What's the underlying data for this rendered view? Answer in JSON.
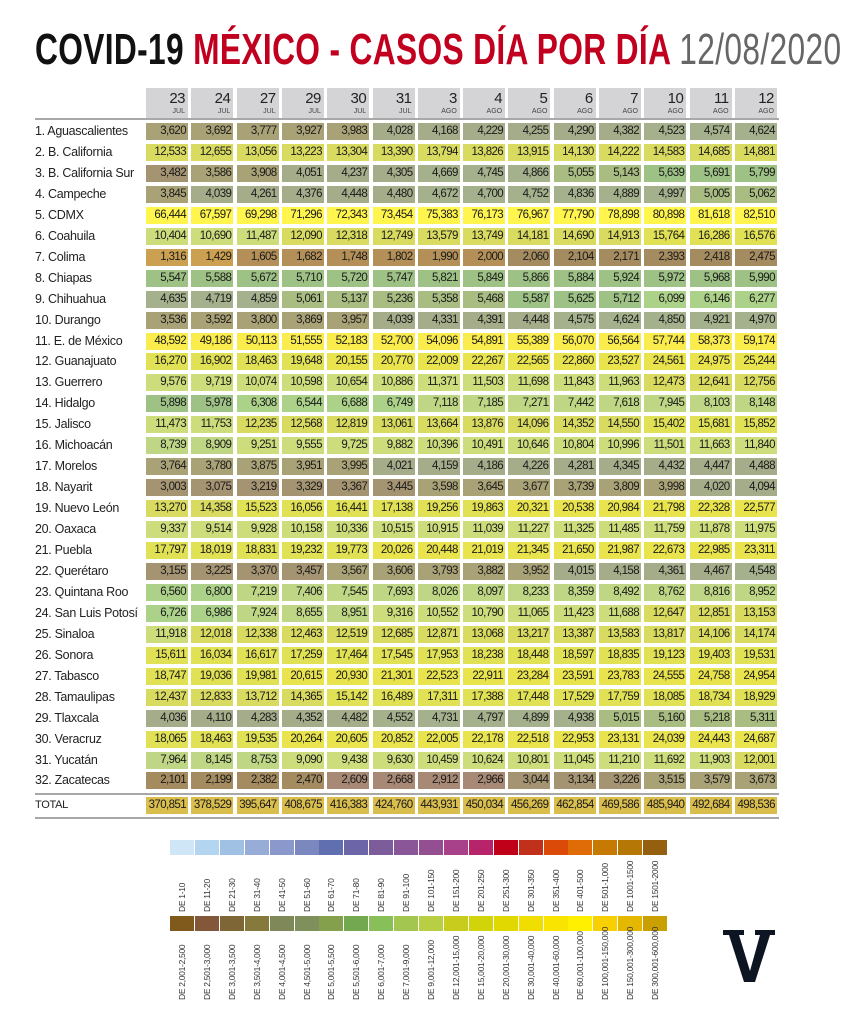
{
  "title": {
    "part1": "COVID-19",
    "part2": "MÉXICO - CASOS DÍA POR DÍA",
    "date": "12/08/2020"
  },
  "logo_text": "V",
  "columns": [
    {
      "day": "23",
      "month": "JUL"
    },
    {
      "day": "24",
      "month": "JUL"
    },
    {
      "day": "27",
      "month": "JUL"
    },
    {
      "day": "29",
      "month": "JUL"
    },
    {
      "day": "30",
      "month": "JUL"
    },
    {
      "day": "31",
      "month": "JUL"
    },
    {
      "day": "3",
      "month": "AGO"
    },
    {
      "day": "4",
      "month": "AGO"
    },
    {
      "day": "5",
      "month": "AGO"
    },
    {
      "day": "6",
      "month": "AGO"
    },
    {
      "day": "7",
      "month": "AGO"
    },
    {
      "day": "10",
      "month": "AGO"
    },
    {
      "day": "11",
      "month": "AGO"
    },
    {
      "day": "12",
      "month": "AGO"
    }
  ],
  "rows": [
    {
      "state": "1. Aguascalientes",
      "values": [
        "3,620",
        "3,692",
        "3,777",
        "3,927",
        "3,983",
        "4,028",
        "4,168",
        "4,229",
        "4,255",
        "4,290",
        "4,382",
        "4,523",
        "4,574",
        "4,624"
      ]
    },
    {
      "state": "2. B. California",
      "values": [
        "12,533",
        "12,655",
        "13,056",
        "13,223",
        "13,304",
        "13,390",
        "13,794",
        "13,826",
        "13,915",
        "14,130",
        "14,222",
        "14,583",
        "14,685",
        "14,881"
      ]
    },
    {
      "state": "3. B. California Sur",
      "values": [
        "3,482",
        "3,586",
        "3,908",
        "4,051",
        "4,237",
        "4,305",
        "4,669",
        "4,745",
        "4,866",
        "5,055",
        "5,143",
        "5,639",
        "5,691",
        "5,799"
      ]
    },
    {
      "state": "4. Campeche",
      "values": [
        "3,845",
        "4,039",
        "4,261",
        "4,376",
        "4,448",
        "4,480",
        "4,672",
        "4,700",
        "4,752",
        "4,836",
        "4,889",
        "4,997",
        "5,005",
        "5,062"
      ]
    },
    {
      "state": "5. CDMX",
      "values": [
        "66,444",
        "67,597",
        "69,298",
        "71,296",
        "72,343",
        "73,454",
        "75,383",
        "76,173",
        "76,967",
        "77,790",
        "78,898",
        "80,898",
        "81,618",
        "82,510"
      ]
    },
    {
      "state": "6. Coahuila",
      "values": [
        "10,404",
        "10,690",
        "11,487",
        "12,090",
        "12,318",
        "12,749",
        "13,579",
        "13,749",
        "14,181",
        "14,690",
        "14,913",
        "15,764",
        "16,286",
        "16,576"
      ]
    },
    {
      "state": "7. Colima",
      "values": [
        "1,316",
        "1,429",
        "1,605",
        "1,682",
        "1,748",
        "1,802",
        "1,990",
        "2,000",
        "2,060",
        "2,104",
        "2,171",
        "2,393",
        "2,418",
        "2,475"
      ]
    },
    {
      "state": "8. Chiapas",
      "values": [
        "5,547",
        "5,588",
        "5,672",
        "5,710",
        "5,720",
        "5,747",
        "5,821",
        "5,849",
        "5,866",
        "5,884",
        "5,924",
        "5,972",
        "5,968",
        "5,990"
      ]
    },
    {
      "state": "9. Chihuahua",
      "values": [
        "4,635",
        "4,719",
        "4,859",
        "5,061",
        "5,137",
        "5,236",
        "5,358",
        "5,468",
        "5,587",
        "5,625",
        "5,712",
        "6,099",
        "6,146",
        "6,277"
      ]
    },
    {
      "state": "10. Durango",
      "values": [
        "3,536",
        "3,592",
        "3,800",
        "3,869",
        "3,957",
        "4,039",
        "4,331",
        "4,391",
        "4,448",
        "4,575",
        "4,624",
        "4,850",
        "4,921",
        "4,970"
      ]
    },
    {
      "state": "11. E. de México",
      "values": [
        "48,592",
        "49,186",
        "50,113",
        "51,555",
        "52,183",
        "52,700",
        "54,096",
        "54,891",
        "55,389",
        "56,070",
        "56,564",
        "57,744",
        "58,373",
        "59,174"
      ]
    },
    {
      "state": "12. Guanajuato",
      "values": [
        "16,270",
        "16,902",
        "18,463",
        "19,648",
        "20,155",
        "20,770",
        "22,009",
        "22,267",
        "22,565",
        "22,860",
        "23,527",
        "24,561",
        "24,975",
        "25,244"
      ]
    },
    {
      "state": "13. Guerrero",
      "values": [
        "9,576",
        "9,719",
        "10,074",
        "10,598",
        "10,654",
        "10,886",
        "11,371",
        "11,503",
        "11,698",
        "11,843",
        "11,963",
        "12,473",
        "12,641",
        "12,756"
      ]
    },
    {
      "state": "14. Hidalgo",
      "values": [
        "5,898",
        "5,978",
        "6,308",
        "6,544",
        "6,688",
        "6,749",
        "7,118",
        "7,185",
        "7,271",
        "7,442",
        "7,618",
        "7,945",
        "8,103",
        "8,148"
      ]
    },
    {
      "state": "15. Jalisco",
      "values": [
        "11,473",
        "11,753",
        "12,235",
        "12,568",
        "12,819",
        "13,061",
        "13,664",
        "13,876",
        "14,096",
        "14,352",
        "14,550",
        "15,402",
        "15,681",
        "15,852"
      ]
    },
    {
      "state": "16. Michoacán",
      "values": [
        "8,739",
        "8,909",
        "9,251",
        "9,555",
        "9,725",
        "9,882",
        "10,396",
        "10,491",
        "10,646",
        "10,804",
        "10,996",
        "11,501",
        "11,663",
        "11,840"
      ]
    },
    {
      "state": "17. Morelos",
      "values": [
        "3,764",
        "3,780",
        "3,875",
        "3,951",
        "3,995",
        "4,021",
        "4,159",
        "4,186",
        "4,226",
        "4,281",
        "4,345",
        "4,432",
        "4,447",
        "4,488"
      ]
    },
    {
      "state": "18. Nayarit",
      "values": [
        "3,003",
        "3,075",
        "3,219",
        "3,329",
        "3,367",
        "3,445",
        "3,598",
        "3,645",
        "3,677",
        "3,739",
        "3,809",
        "3,998",
        "4,020",
        "4,094"
      ]
    },
    {
      "state": "19. Nuevo León",
      "values": [
        "13,270",
        "14,358",
        "15,523",
        "16,056",
        "16,441",
        "17,138",
        "19,256",
        "19,863",
        "20,321",
        "20,538",
        "20,984",
        "21,798",
        "22,328",
        "22,577"
      ]
    },
    {
      "state": "20. Oaxaca",
      "values": [
        "9,337",
        "9,514",
        "9,928",
        "10,158",
        "10,336",
        "10,515",
        "10,915",
        "11,039",
        "11,227",
        "11,325",
        "11,485",
        "11,759",
        "11,878",
        "11,975"
      ]
    },
    {
      "state": "21. Puebla",
      "values": [
        "17,797",
        "18,019",
        "18,831",
        "19,232",
        "19,773",
        "20,026",
        "20,448",
        "21,019",
        "21,345",
        "21,650",
        "21,987",
        "22,673",
        "22,985",
        "23,311"
      ]
    },
    {
      "state": "22. Querétaro",
      "values": [
        "3,155",
        "3,225",
        "3,370",
        "3,457",
        "3,567",
        "3,606",
        "3,793",
        "3,882",
        "3,952",
        "4,015",
        "4,158",
        "4,361",
        "4,467",
        "4,548"
      ]
    },
    {
      "state": "23. Quintana Roo",
      "values": [
        "6,560",
        "6,800",
        "7,219",
        "7,406",
        "7,545",
        "7,693",
        "8,026",
        "8,097",
        "8,233",
        "8,359",
        "8,492",
        "8,762",
        "8,816",
        "8,952"
      ]
    },
    {
      "state": "24. San Luis Potosí",
      "values": [
        "6,726",
        "6,986",
        "7,924",
        "8,655",
        "8,951",
        "9,316",
        "10,552",
        "10,790",
        "11,065",
        "11,423",
        "11,688",
        "12,647",
        "12,851",
        "13,153"
      ]
    },
    {
      "state": "25. Sinaloa",
      "values": [
        "11,918",
        "12,018",
        "12,338",
        "12,463",
        "12,519",
        "12,685",
        "12,871",
        "13,068",
        "13,217",
        "13,387",
        "13,583",
        "13,817",
        "14,106",
        "14,174"
      ]
    },
    {
      "state": "26. Sonora",
      "values": [
        "15,611",
        "16,034",
        "16,617",
        "17,259",
        "17,464",
        "17,545",
        "17,953",
        "18,238",
        "18,448",
        "18,597",
        "18,835",
        "19,123",
        "19,403",
        "19,531"
      ]
    },
    {
      "state": "27. Tabasco",
      "values": [
        "18,747",
        "19,036",
        "19,981",
        "20,615",
        "20,930",
        "21,301",
        "22,523",
        "22,911",
        "23,284",
        "23,591",
        "23,783",
        "24,555",
        "24,758",
        "24,954"
      ]
    },
    {
      "state": "28. Tamaulipas",
      "values": [
        "12,437",
        "12,833",
        "13,712",
        "14,365",
        "15,142",
        "16,489",
        "17,311",
        "17,388",
        "17,448",
        "17,529",
        "17,759",
        "18,085",
        "18,734",
        "18,929"
      ]
    },
    {
      "state": "29. Tlaxcala",
      "values": [
        "4,036",
        "4,110",
        "4,283",
        "4,352",
        "4,482",
        "4,552",
        "4,731",
        "4,797",
        "4,899",
        "4,938",
        "5,015",
        "5,160",
        "5,218",
        "5,311"
      ]
    },
    {
      "state": "30. Veracruz",
      "values": [
        "18,065",
        "18,463",
        "19,535",
        "20,264",
        "20,605",
        "20,852",
        "22,005",
        "22,178",
        "22,518",
        "22,953",
        "23,131",
        "24,039",
        "24,443",
        "24,687"
      ]
    },
    {
      "state": "31. Yucatán",
      "values": [
        "7,964",
        "8,145",
        "8,753",
        "9,090",
        "9,438",
        "9,630",
        "10,459",
        "10,624",
        "10,801",
        "11,045",
        "11,210",
        "11,692",
        "11,903",
        "12,001"
      ]
    },
    {
      "state": "32. Zacatecas",
      "values": [
        "2,101",
        "2,199",
        "2,382",
        "2,470",
        "2,609",
        "2,668",
        "2,912",
        "2,966",
        "3,044",
        "3,134",
        "3,226",
        "3,515",
        "3,579",
        "3,673"
      ]
    }
  ],
  "total": {
    "label": "TOTAL",
    "values": [
      "370,851",
      "378,529",
      "395,647",
      "408,675",
      "416,383",
      "424,760",
      "443,931",
      "450,034",
      "456,269",
      "462,854",
      "469,586",
      "485,940",
      "492,684",
      "498,536"
    ]
  },
  "legend": [
    [
      {
        "label": "DE 1-10",
        "min": 1,
        "color": "#cfe6f7"
      },
      {
        "label": "DE 11-20",
        "min": 11,
        "color": "#b3d5ef"
      },
      {
        "label": "DE 21-30",
        "min": 21,
        "color": "#a0c0e4"
      },
      {
        "label": "DE 31-40",
        "min": 31,
        "color": "#98acd8"
      },
      {
        "label": "DE 41-50",
        "min": 41,
        "color": "#8a98cc"
      },
      {
        "label": "DE 51-60",
        "min": 51,
        "color": "#7b88c0"
      },
      {
        "label": "DE 61-70",
        "min": 61,
        "color": "#5f6fb0"
      },
      {
        "label": "DE 71-80",
        "min": 71,
        "color": "#6c66a8"
      },
      {
        "label": "DE 81-90",
        "min": 81,
        "color": "#7d5c9c"
      },
      {
        "label": "DE 91-100",
        "min": 91,
        "color": "#8a5698"
      },
      {
        "label": "DE 101-150",
        "min": 101,
        "color": "#944f93"
      },
      {
        "label": "DE 151-200",
        "min": 151,
        "color": "#a9408a"
      },
      {
        "label": "DE 201-250",
        "min": 201,
        "color": "#b8246a"
      },
      {
        "label": "DE 251-300",
        "min": 251,
        "color": "#bf0018"
      },
      {
        "label": "DE 301-350",
        "min": 301,
        "color": "#c0301a"
      },
      {
        "label": "DE 351-400",
        "min": 351,
        "color": "#dc4a0a"
      },
      {
        "label": "DE 401-500",
        "min": 401,
        "color": "#e06c08"
      },
      {
        "label": "DE 501-1,000",
        "min": 501,
        "color": "#c67a04"
      },
      {
        "label": "DE 1001-1500",
        "min": 1001,
        "color": "#b57806"
      },
      {
        "label": "DE 1501-2000",
        "min": 1501,
        "color": "#946010"
      }
    ],
    [
      {
        "label": "DE 2,001-2,500",
        "min": 2001,
        "color": "#7f5a1c"
      },
      {
        "label": "DE 2,501-3,000",
        "min": 2501,
        "color": "#82573a"
      },
      {
        "label": "DE 3,001-3,500",
        "min": 3001,
        "color": "#7f6636"
      },
      {
        "label": "DE 3,501-4,000",
        "min": 3501,
        "color": "#857a3c"
      },
      {
        "label": "DE 4,001-4,500",
        "min": 4001,
        "color": "#7f8858"
      },
      {
        "label": "DE 4,501-5,000",
        "min": 4501,
        "color": "#7f905c"
      },
      {
        "label": "DE 5,001-5,500",
        "min": 5001,
        "color": "#84a04c"
      },
      {
        "label": "DE 5,501-6,000",
        "min": 5501,
        "color": "#74a850"
      },
      {
        "label": "DE 6,001-7,000",
        "min": 6001,
        "color": "#88bf58"
      },
      {
        "label": "DE 7,001-9,000",
        "min": 7001,
        "color": "#a3c650"
      },
      {
        "label": "DE 9,001-12,000",
        "min": 9001,
        "color": "#b8cf44"
      },
      {
        "label": "DE 12,001-15,000",
        "min": 12001,
        "color": "#c8cc1c"
      },
      {
        "label": "DE 15,001-20,000",
        "min": 15001,
        "color": "#d2d40a"
      },
      {
        "label": "DE 20,001-30,000",
        "min": 20001,
        "color": "#e0d800"
      },
      {
        "label": "DE 30,001-40,000",
        "min": 30001,
        "color": "#f0de00"
      },
      {
        "label": "DE 40,001-60,000",
        "min": 40001,
        "color": "#f8e400"
      },
      {
        "label": "DE 60,001-100,000",
        "min": 60001,
        "color": "#fff000"
      },
      {
        "label": "DE 100,001-150,000",
        "min": 100001,
        "color": "#f8d000"
      },
      {
        "label": "DE 150,001-300,000",
        "min": 150001,
        "color": "#e4b800"
      },
      {
        "label": "DE 300,001-600,000",
        "min": 300001,
        "color": "#c9a000"
      }
    ]
  ]
}
